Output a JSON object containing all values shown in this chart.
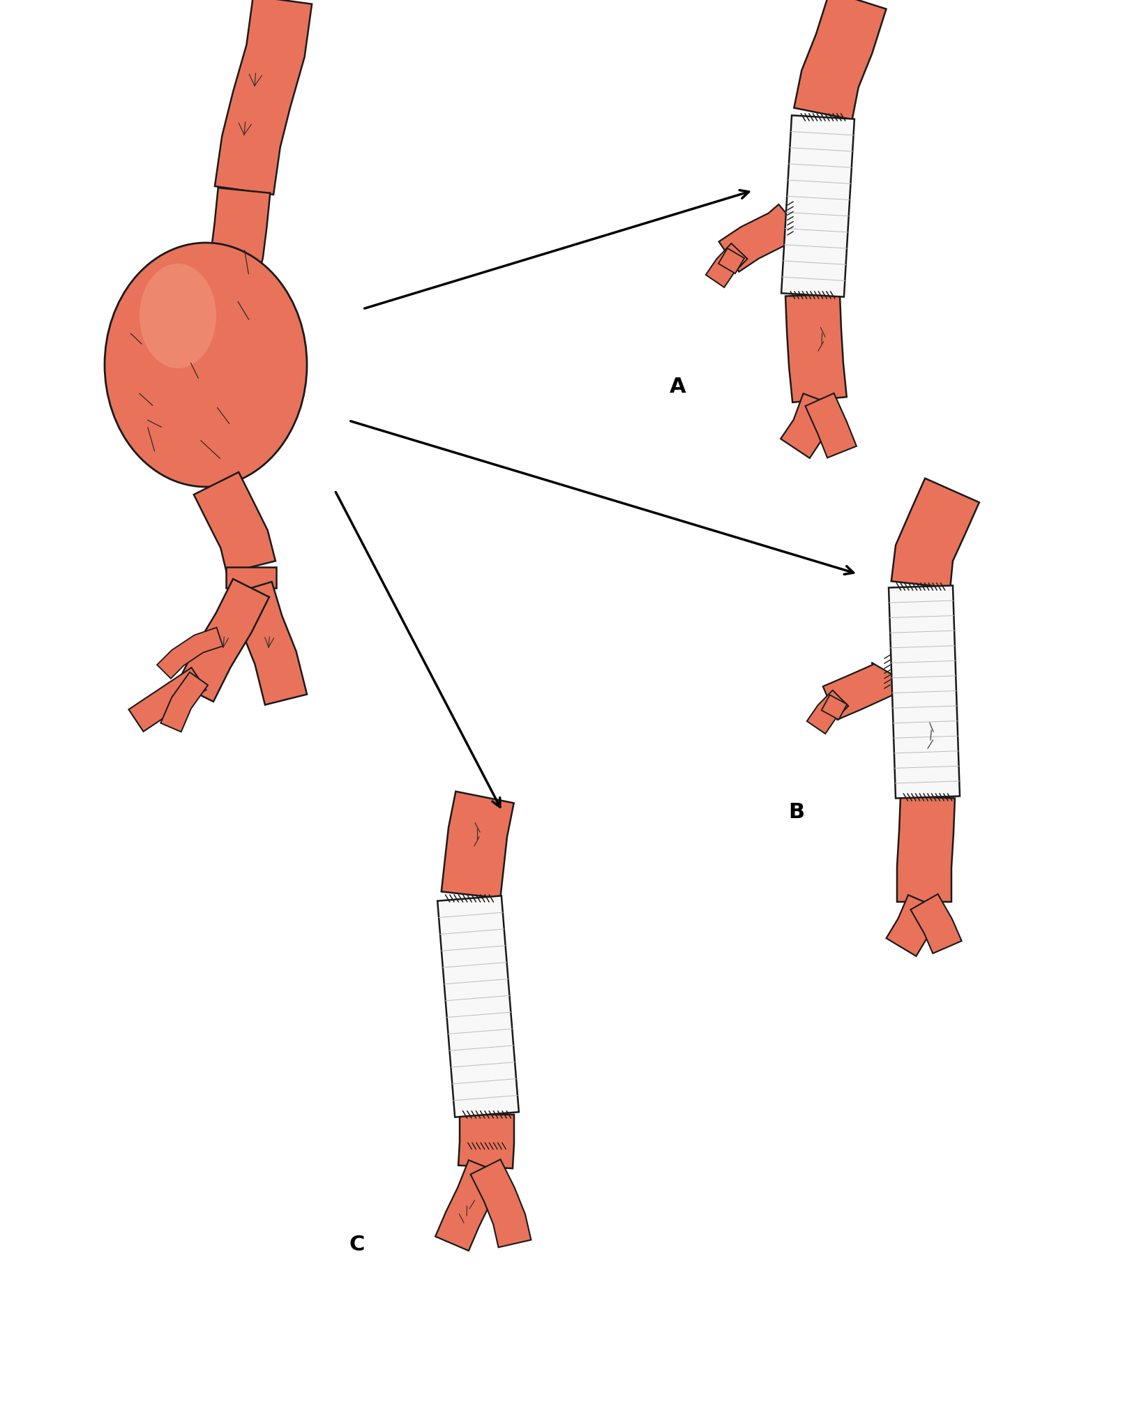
{
  "bg_color": "#ffffff",
  "artery_color": "#E8735A",
  "artery_dark": "#C85A3E",
  "artery_highlight": "#F0A090",
  "graft_color": "#F8F8F8",
  "suture_color": "#1a1a1a",
  "outline_color": "#1a1a1a",
  "arrow_color": "#1a1a1a",
  "label_A": "A",
  "label_B": "B",
  "label_C": "C",
  "label_fontsize": 22,
  "fig_width": 16.2,
  "fig_height": 20.23
}
